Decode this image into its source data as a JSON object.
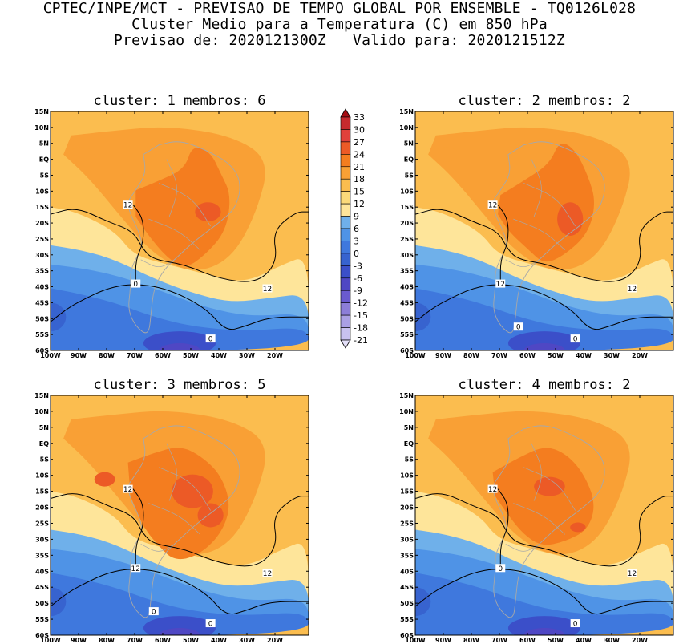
{
  "header": {
    "line1": "CPTEC/INPE/MCT - PREVISAO DE TEMPO GLOBAL POR ENSEMBLE - TQ0126L028",
    "line2": "Cluster Medio para a Temperatura (C) em 850 hPa",
    "line3": "Previsao de: 2020121300Z   Valido para: 2020121512Z"
  },
  "map": {
    "lat_labels": [
      "15N",
      "10N",
      "5N",
      "EQ",
      "5S",
      "10S",
      "15S",
      "20S",
      "25S",
      "30S",
      "35S",
      "40S",
      "45S",
      "50S",
      "55S",
      "60S"
    ],
    "lon_labels": [
      "100W",
      "90W",
      "80W",
      "70W",
      "60W",
      "50W",
      "40W",
      "30W",
      "20W"
    ],
    "panels": [
      {
        "title": "cluster: 1   membros: 6",
        "contour_labels": [
          "12",
          "12",
          "0",
          "0"
        ]
      },
      {
        "title": "cluster: 2   membros: 2",
        "contour_labels": [
          "12",
          "12",
          "12",
          "0",
          "0"
        ]
      },
      {
        "title": "cluster: 3   membros: 5",
        "contour_labels": [
          "12",
          "12",
          "12",
          "0",
          "0"
        ]
      },
      {
        "title": "cluster: 4   membros: 2",
        "contour_labels": [
          "12",
          "12",
          "0",
          "0"
        ]
      }
    ]
  },
  "colorbar": {
    "levels": [
      "33",
      "30",
      "27",
      "24",
      "21",
      "18",
      "15",
      "12",
      "9",
      "6",
      "3",
      "0",
      "-3",
      "-6",
      "-9",
      "-12",
      "-15",
      "-18",
      "-21"
    ],
    "colors": [
      "#a50c12",
      "#c62a2e",
      "#e0413b",
      "#ec5a26",
      "#f47d1f",
      "#f9a035",
      "#fbbd4f",
      "#fbd97a",
      "#fee59a",
      "#6fb0ea",
      "#4f93e6",
      "#3f78dd",
      "#3763cf",
      "#3b4fc9",
      "#4f47c4",
      "#6a5bcf",
      "#8c7ed8",
      "#aaa0e4",
      "#c8c1ef",
      "#e3dff8"
    ]
  }
}
